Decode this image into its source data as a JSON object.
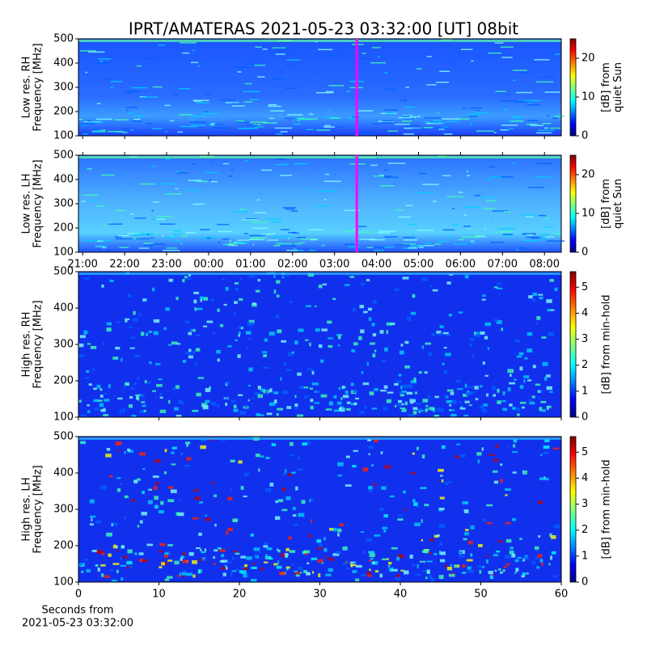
{
  "chart_data": [
    {
      "type": "heatmap",
      "title": "IPRT/AMATERAS 2021-05-23 03:32:00 [UT]   08bit",
      "ylabel": [
        "Low res. RH",
        "Frequency [MHz]"
      ],
      "ylim": [
        100,
        500
      ],
      "yticks": [
        100,
        200,
        300,
        400,
        500
      ],
      "xlim": [
        20.9,
        32.4
      ],
      "cursor": 27.53,
      "cursor_color": "#ff00ff",
      "colorbar_label": [
        "[dB] from",
        "quiet Sun"
      ],
      "clim": [
        0,
        25
      ],
      "cticks": [
        0,
        10,
        20
      ]
    },
    {
      "type": "heatmap",
      "ylabel": [
        "Low res. LH",
        "Frequency [MHz]"
      ],
      "ylim": [
        100,
        500
      ],
      "yticks": [
        100,
        200,
        300,
        400,
        500
      ],
      "xlim": [
        20.9,
        32.4
      ],
      "xticks": [
        {
          "value": 21,
          "label": "21:00"
        },
        {
          "value": 22,
          "label": "22:00"
        },
        {
          "value": 23,
          "label": "23:00"
        },
        {
          "value": 24,
          "label": "00:00"
        },
        {
          "value": 25,
          "label": "01:00"
        },
        {
          "value": 26,
          "label": "02:00"
        },
        {
          "value": 27,
          "label": "03:00"
        },
        {
          "value": 28,
          "label": "04:00"
        },
        {
          "value": 29,
          "label": "05:00"
        },
        {
          "value": 30,
          "label": "06:00"
        },
        {
          "value": 31,
          "label": "07:00"
        },
        {
          "value": 32,
          "label": "08:00"
        }
      ],
      "cursor": 27.53,
      "cursor_color": "#ff00ff",
      "colorbar_label": [
        "[dB] from",
        "quiet Sun"
      ],
      "clim": [
        0,
        25
      ],
      "cticks": [
        0,
        10,
        20
      ]
    },
    {
      "type": "heatmap",
      "ylabel": [
        "High res. RH",
        "Frequency [MHz]"
      ],
      "ylim": [
        100,
        500
      ],
      "yticks": [
        100,
        200,
        300,
        400,
        500
      ],
      "xlim": [
        0,
        60
      ],
      "colorbar_label": [
        "[dB] from min-hold"
      ],
      "clim": [
        0,
        5.6
      ],
      "cticks": [
        0,
        1,
        2,
        3,
        4,
        5
      ]
    },
    {
      "type": "heatmap",
      "ylabel": [
        "High res. LH",
        "Frequency [MHz]"
      ],
      "ylim": [
        100,
        500
      ],
      "yticks": [
        100,
        200,
        300,
        400,
        500
      ],
      "xlim": [
        0,
        60
      ],
      "xticks": [
        0,
        10,
        20,
        30,
        40,
        50,
        60
      ],
      "xlabel": [
        "Seconds from",
        "2021-05-23 03:32:00"
      ],
      "colorbar_label": [
        "[dB] from min-hold"
      ],
      "clim": [
        0,
        5.6
      ],
      "cticks": [
        0,
        1,
        2,
        3,
        4,
        5
      ]
    }
  ]
}
